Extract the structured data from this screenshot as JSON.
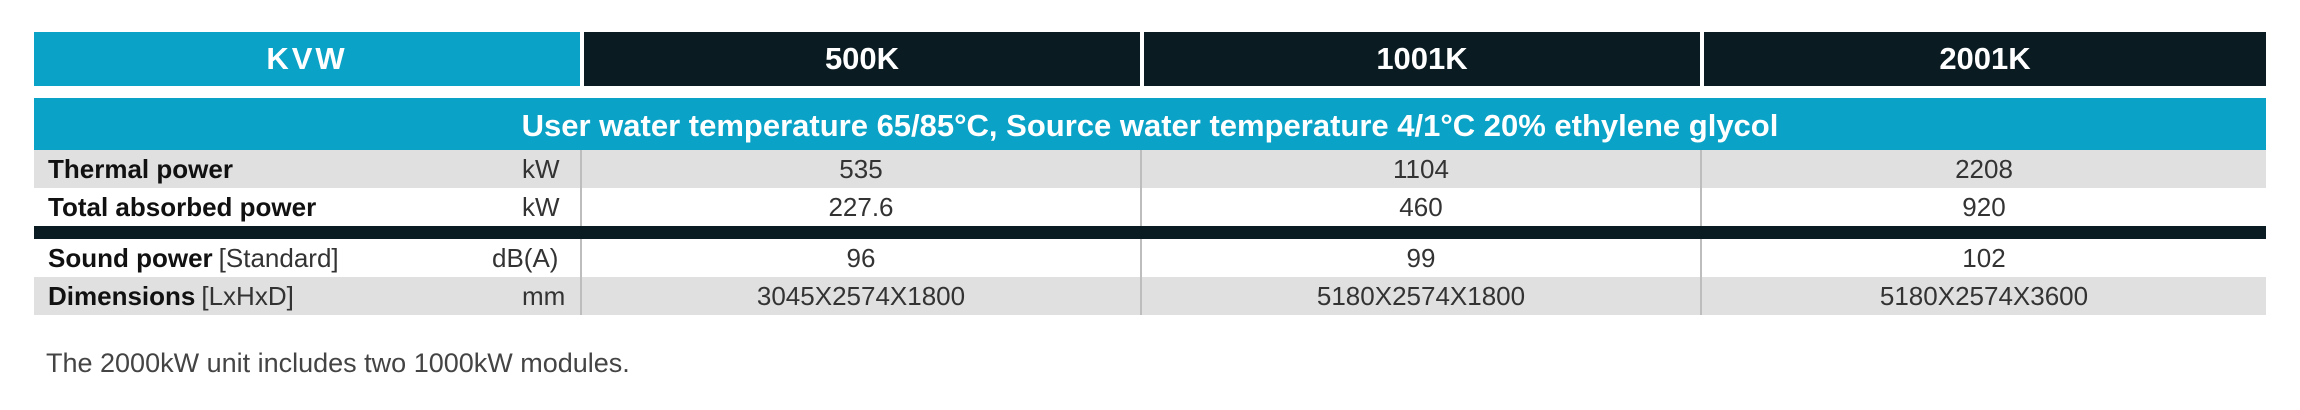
{
  "header": {
    "series": "KVW",
    "models": [
      "500K",
      "1001K",
      "2001K"
    ]
  },
  "condition": "User water temperature 65/85°C, Source water temperature 4/1°C 20% ethylene glycol",
  "rows_group1": [
    {
      "label": "Thermal power",
      "extra": "",
      "unit": "kW",
      "values": [
        "535",
        "1104",
        "2208"
      ]
    },
    {
      "label": "Total absorbed power",
      "extra": "",
      "unit": "kW",
      "values": [
        "227.6",
        "460",
        "920"
      ]
    }
  ],
  "rows_group2": [
    {
      "label": "Sound power",
      "extra": "[Standard]",
      "unit": "dB(A)",
      "values": [
        "96",
        "99",
        "102"
      ]
    },
    {
      "label": "Dimensions",
      "extra": "[LxHxD]",
      "unit": "mm",
      "values": [
        "3045X2574X1800",
        "5180X2574X1800",
        "5180X2574X3600"
      ]
    }
  ],
  "footnote": "The 2000kW unit includes two 1000kW modules.",
  "colors": {
    "accent": "#0aa2c6",
    "dark": "#0a1c22",
    "row_grey": "#e0e0e0"
  }
}
